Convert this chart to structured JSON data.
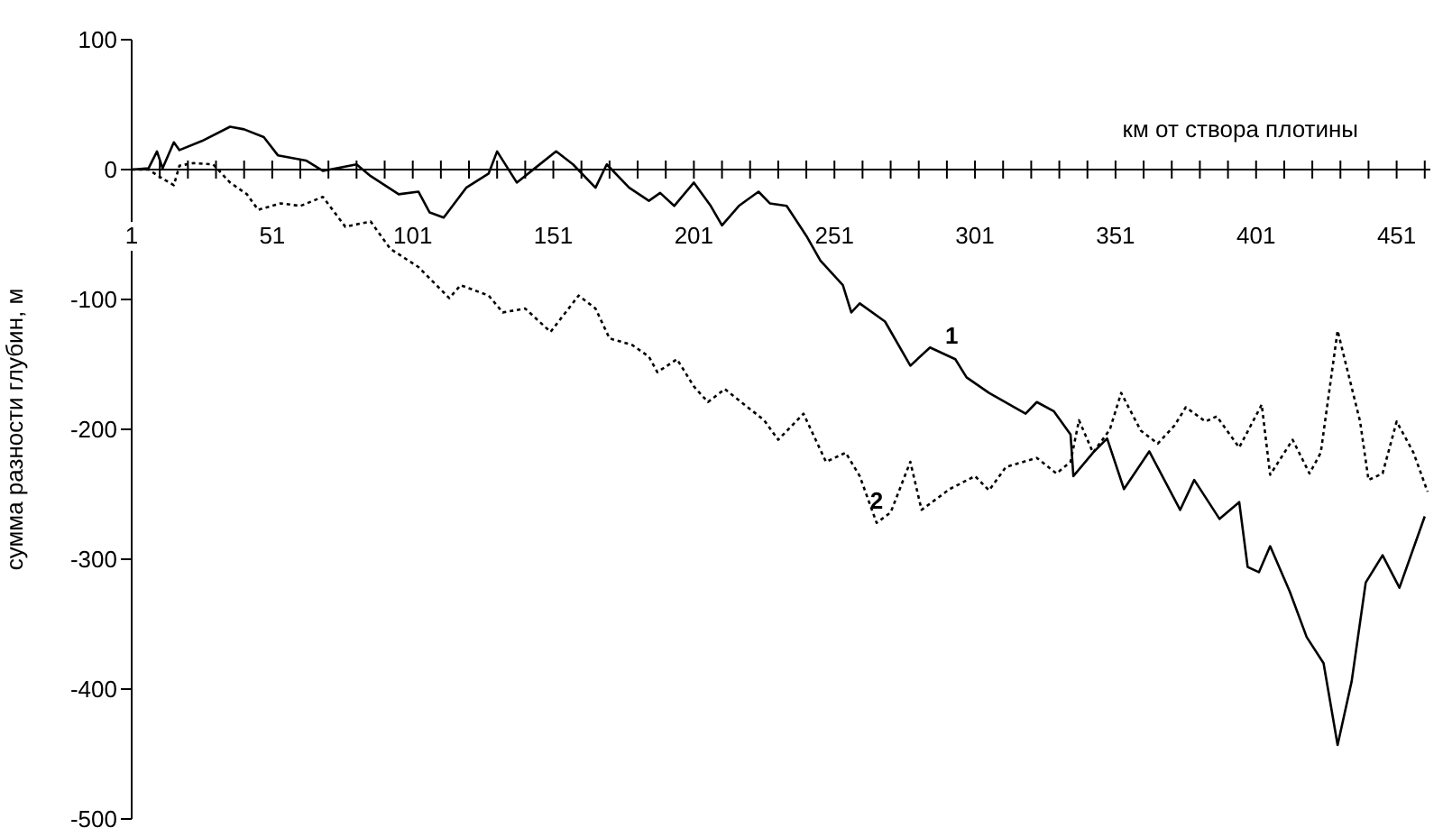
{
  "chart_data": {
    "type": "line",
    "xlabel": "км от створа плотины",
    "ylabel": "сумма разности глубин, м",
    "xlim": [
      1,
      463
    ],
    "ylim": [
      -500,
      100
    ],
    "xticks": [
      1,
      {
        "value": 11,
        "label": null
      },
      {
        "value": 21,
        "label": null
      },
      {
        "value": 31,
        "label": null
      },
      {
        "value": 41,
        "label": null
      },
      51,
      {
        "value": 61,
        "label": null
      },
      {
        "value": 71,
        "label": null
      },
      {
        "value": 81,
        "label": null
      },
      {
        "value": 91,
        "label": null
      },
      101,
      {
        "value": 111,
        "label": null
      },
      {
        "value": 121,
        "label": null
      },
      {
        "value": 131,
        "label": null
      },
      {
        "value": 141,
        "label": null
      },
      151,
      {
        "value": 161,
        "label": null
      },
      {
        "value": 171,
        "label": null
      },
      {
        "value": 181,
        "label": null
      },
      {
        "value": 191,
        "label": null
      },
      201,
      {
        "value": 211,
        "label": null
      },
      {
        "value": 221,
        "label": null
      },
      {
        "value": 231,
        "label": null
      },
      {
        "value": 241,
        "label": null
      },
      251,
      {
        "value": 261,
        "label": null
      },
      {
        "value": 271,
        "label": null
      },
      {
        "value": 281,
        "label": null
      },
      {
        "value": 291,
        "label": null
      },
      301,
      {
        "value": 311,
        "label": null
      },
      {
        "value": 321,
        "label": null
      },
      {
        "value": 331,
        "label": null
      },
      {
        "value": 341,
        "label": null
      },
      351,
      {
        "value": 361,
        "label": null
      },
      {
        "value": 371,
        "label": null
      },
      {
        "value": 381,
        "label": null
      },
      {
        "value": 391,
        "label": null
      },
      401,
      {
        "value": 411,
        "label": null
      },
      {
        "value": 421,
        "label": null
      },
      {
        "value": 431,
        "label": null
      },
      {
        "value": 441,
        "label": null
      },
      451,
      {
        "value": 461,
        "label": null
      }
    ],
    "yticks": [
      -500,
      -400,
      -300,
      -200,
      -100,
      0,
      100
    ],
    "marker": "none",
    "series": [
      {
        "name": "1",
        "color": "#000000",
        "line_style": "solid",
        "x": [
          1,
          7,
          10,
          12,
          16,
          18,
          26,
          36,
          41,
          48,
          53,
          63,
          69,
          81,
          86,
          96,
          103,
          107,
          112,
          120,
          128,
          131,
          138,
          145,
          152,
          158,
          166,
          170,
          178,
          185,
          189,
          194,
          201,
          207,
          211,
          217,
          224,
          228,
          234,
          241,
          246,
          254,
          257,
          260,
          269,
          278,
          285,
          294,
          298,
          306,
          319,
          323,
          329,
          335,
          336,
          343,
          348,
          354,
          363,
          374,
          379,
          388,
          395,
          398,
          402,
          406,
          413,
          419,
          425,
          430,
          435,
          440,
          446,
          452,
          461
        ],
        "values": [
          0,
          1,
          14,
          1,
          21,
          15,
          22,
          33,
          31,
          25,
          11,
          7,
          -1,
          4,
          -5,
          -19,
          -17,
          -33,
          -37,
          -14,
          -3,
          14,
          -10,
          2,
          14,
          4,
          -14,
          4,
          -14,
          -24,
          -18,
          -28,
          -10,
          -28,
          -43,
          -28,
          -17,
          -26,
          -28,
          -51,
          -70,
          -89,
          -110,
          -103,
          -117,
          -151,
          -137,
          -146,
          -160,
          -172,
          -188,
          -179,
          -186,
          -204,
          -236,
          -218,
          -207,
          -246,
          -217,
          -262,
          -239,
          -269,
          -256,
          -306,
          -310,
          -290,
          -325,
          -360,
          -380,
          -443,
          -394,
          -318,
          -297,
          -322,
          -267
        ]
      },
      {
        "name": "2",
        "color": "#000000",
        "line_style": "dotted",
        "x": [
          1,
          7,
          12,
          16,
          18,
          23,
          30,
          36,
          42,
          46,
          54,
          61,
          69,
          77,
          86,
          93,
          103,
          114,
          118,
          128,
          133,
          141,
          150,
          160,
          166,
          171,
          179,
          185,
          188,
          195,
          201,
          206,
          212,
          226,
          231,
          240,
          248,
          255,
          260,
          266,
          271,
          278,
          282,
          292,
          301,
          306,
          312,
          323,
          330,
          335,
          338,
          343,
          349,
          353,
          360,
          366,
          372,
          376,
          383,
          387,
          395,
          403,
          406,
          414,
          420,
          424,
          430,
          438,
          441,
          446,
          451,
          457,
          462
        ],
        "values": [
          0,
          0,
          -7,
          -12,
          3,
          5,
          4,
          -10,
          -19,
          -31,
          -26,
          -28,
          -21,
          -44,
          -40,
          -61,
          -75,
          -99,
          -89,
          -97,
          -110,
          -107,
          -125,
          -97,
          -107,
          -130,
          -135,
          -144,
          -156,
          -146,
          -167,
          -179,
          -169,
          -193,
          -208,
          -188,
          -225,
          -218,
          -236,
          -272,
          -264,
          -225,
          -262,
          -246,
          -236,
          -247,
          -229,
          -222,
          -234,
          -225,
          -193,
          -218,
          -200,
          -172,
          -201,
          -211,
          -197,
          -183,
          -194,
          -190,
          -214,
          -181,
          -235,
          -208,
          -234,
          -218,
          -124,
          -194,
          -239,
          -234,
          -194,
          -218,
          -248
        ]
      }
    ]
  }
}
